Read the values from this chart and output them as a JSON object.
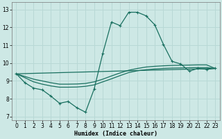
{
  "xlabel": "Humidex (Indice chaleur)",
  "background_color": "#cde8e5",
  "grid_color": "#b8d8d5",
  "line_color": "#1a7060",
  "xlim": [
    -0.5,
    23.5
  ],
  "ylim": [
    6.8,
    13.4
  ],
  "xticks": [
    0,
    1,
    2,
    3,
    4,
    5,
    6,
    7,
    8,
    9,
    10,
    11,
    12,
    13,
    14,
    15,
    16,
    17,
    18,
    19,
    20,
    21,
    22,
    23
  ],
  "yticks": [
    7,
    8,
    9,
    10,
    11,
    12,
    13
  ],
  "main_curve": {
    "x": [
      0,
      1,
      2,
      3,
      4,
      5,
      6,
      7,
      8,
      9,
      10,
      11,
      12,
      13,
      14,
      15,
      16,
      17,
      18,
      19,
      20,
      21,
      22,
      23
    ],
    "y": [
      9.4,
      8.9,
      8.6,
      8.5,
      8.15,
      7.75,
      7.85,
      7.5,
      7.25,
      8.55,
      10.55,
      12.3,
      12.1,
      12.85,
      12.85,
      12.65,
      12.15,
      11.05,
      10.1,
      9.95,
      9.55,
      9.7,
      9.65,
      9.7
    ]
  },
  "line_a": {
    "x": [
      0,
      1,
      2,
      3,
      4,
      5,
      6,
      7,
      8,
      9,
      10,
      11,
      12,
      13,
      14,
      15,
      16,
      17,
      18,
      19,
      20,
      21,
      22,
      23
    ],
    "y": [
      9.4,
      9.25,
      9.1,
      9.0,
      8.9,
      8.82,
      8.82,
      8.83,
      8.86,
      8.95,
      9.1,
      9.28,
      9.45,
      9.6,
      9.7,
      9.78,
      9.82,
      9.85,
      9.87,
      9.88,
      9.89,
      9.9,
      9.9,
      9.7
    ]
  },
  "line_b": {
    "x": [
      0,
      1,
      2,
      3,
      4,
      5,
      6,
      7,
      8,
      9,
      10,
      11,
      12,
      13,
      14,
      15,
      16,
      17,
      18,
      19,
      20,
      21,
      22,
      23
    ],
    "y": [
      9.4,
      9.18,
      8.95,
      8.82,
      8.72,
      8.65,
      8.65,
      8.66,
      8.7,
      8.78,
      8.95,
      9.12,
      9.3,
      9.47,
      9.57,
      9.63,
      9.67,
      9.7,
      9.72,
      9.73,
      9.74,
      9.75,
      9.75,
      9.7
    ]
  },
  "line_c": {
    "x": [
      0,
      23
    ],
    "y": [
      9.4,
      9.7
    ]
  }
}
